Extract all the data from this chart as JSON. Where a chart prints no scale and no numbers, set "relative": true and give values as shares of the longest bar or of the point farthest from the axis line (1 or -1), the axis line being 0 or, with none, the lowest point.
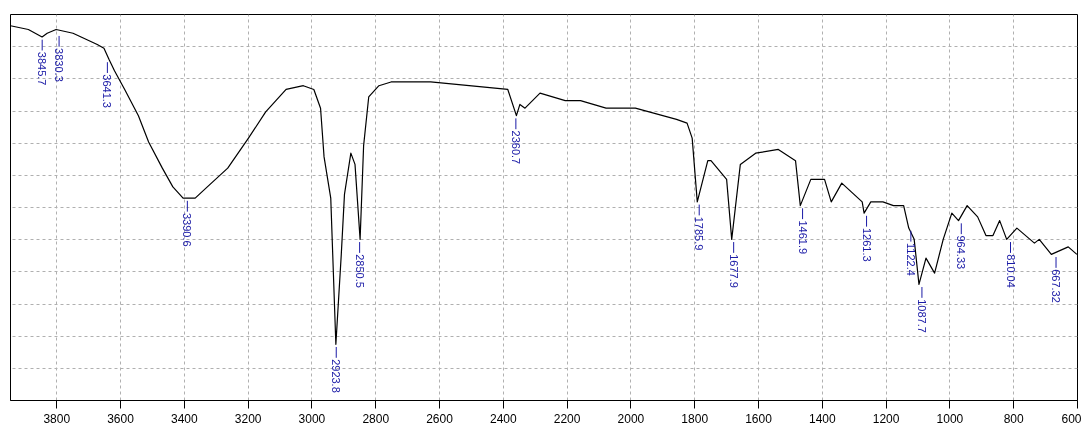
{
  "chart_data": {
    "type": "line",
    "relative": true,
    "grid": true,
    "marker": "none",
    "line_style": "solid",
    "xlim": [
      3945,
      600
    ],
    "xticks": [
      3800,
      3600,
      3400,
      3200,
      3000,
      2800,
      2600,
      2400,
      2200,
      2000,
      1800,
      1600,
      1400,
      1200,
      1000,
      800,
      600
    ],
    "x": [
      3945,
      3889,
      3846,
      3830,
      3802,
      3749,
      3673,
      3652,
      3636,
      3619,
      3587,
      3544,
      3512,
      3469,
      3436,
      3404,
      3366,
      3328,
      3264,
      3199,
      3145,
      3081,
      3027,
      2994,
      2973,
      2962,
      2941,
      2925,
      2908,
      2898,
      2878,
      2865,
      2849,
      2838,
      2822,
      2790,
      2752,
      2628,
      2386,
      2359,
      2348,
      2332,
      2285,
      2206,
      2158,
      2078,
      1986,
      1857,
      1824,
      1808,
      1792,
      1759,
      1749,
      1700,
      1684,
      1657,
      1609,
      1538,
      1484,
      1469,
      1436,
      1393,
      1372,
      1339,
      1275,
      1269,
      1248,
      1210,
      1177,
      1145,
      1129,
      1112,
      1097,
      1075,
      1048,
      1021,
      994,
      973,
      946,
      913,
      887,
      865,
      844,
      822,
      790,
      735,
      720,
      682,
      629,
      602
    ],
    "series": [
      {
        "color": "#000000",
        "values": [
          1.0,
          0.99,
          0.97,
          0.98,
          0.99,
          0.98,
          0.95,
          0.94,
          0.91,
          0.88,
          0.83,
          0.76,
          0.69,
          0.62,
          0.57,
          0.54,
          0.54,
          0.57,
          0.62,
          0.7,
          0.77,
          0.83,
          0.84,
          0.83,
          0.78,
          0.65,
          0.54,
          0.15,
          0.39,
          0.55,
          0.66,
          0.63,
          0.43,
          0.68,
          0.81,
          0.84,
          0.85,
          0.85,
          0.83,
          0.76,
          0.79,
          0.78,
          0.82,
          0.8,
          0.8,
          0.78,
          0.78,
          0.75,
          0.74,
          0.7,
          0.53,
          0.64,
          0.64,
          0.59,
          0.43,
          0.63,
          0.66,
          0.67,
          0.64,
          0.52,
          0.59,
          0.59,
          0.53,
          0.58,
          0.53,
          0.5,
          0.53,
          0.53,
          0.52,
          0.52,
          0.46,
          0.43,
          0.31,
          0.38,
          0.34,
          0.43,
          0.5,
          0.48,
          0.52,
          0.49,
          0.44,
          0.44,
          0.48,
          0.43,
          0.46,
          0.42,
          0.43,
          0.39,
          0.41,
          0.39
        ]
      }
    ],
    "annotations": [
      {
        "text": "3845.7",
        "x": 3845.7,
        "y": 0.97
      },
      {
        "text": "3830.3",
        "x": 3830.3,
        "y": 0.98
      },
      {
        "text": "3641.3",
        "x": 3641.3,
        "y": 0.91
      },
      {
        "text": "3390.6",
        "x": 3390.6,
        "y": 0.54
      },
      {
        "text": "2923.8",
        "x": 2923.8,
        "y": 0.15
      },
      {
        "text": "2850.5",
        "x": 2850.5,
        "y": 0.43
      },
      {
        "text": "2360.7",
        "x": 2360.7,
        "y": 0.76
      },
      {
        "text": "1785.9",
        "x": 1785.9,
        "y": 0.53
      },
      {
        "text": "1677.9",
        "x": 1677.9,
        "y": 0.43
      },
      {
        "text": "1461.9",
        "x": 1461.9,
        "y": 0.52
      },
      {
        "text": "1261.3",
        "x": 1261.3,
        "y": 0.5
      },
      {
        "text": "1122.4",
        "x": 1122.4,
        "y": 0.46
      },
      {
        "text": "1087.7",
        "x": 1087.7,
        "y": 0.31
      },
      {
        "text": "964.33",
        "x": 964.33,
        "y": 0.48
      },
      {
        "text": "810.04",
        "x": 810.04,
        "y": 0.43
      },
      {
        "text": "667.32",
        "x": 667.32,
        "y": 0.39
      }
    ]
  }
}
